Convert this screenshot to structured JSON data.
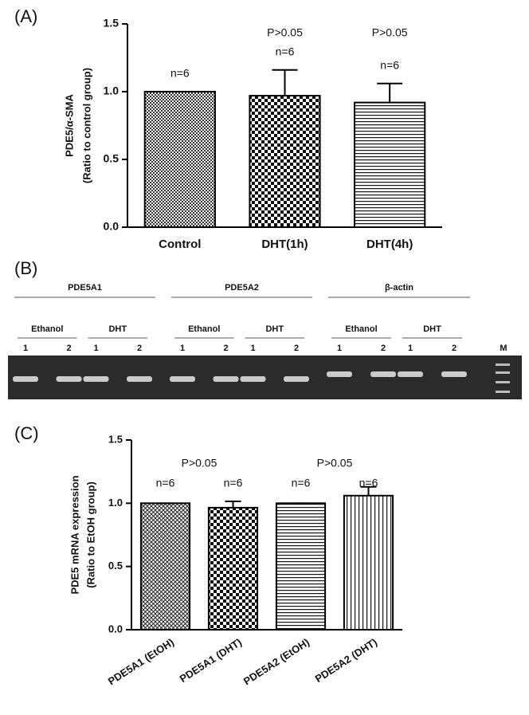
{
  "panel_labels": [
    "(A)",
    "(B)",
    "(C)"
  ],
  "chart_data": [
    {
      "type": "bar",
      "ylabel": [
        "PDE5/α-SMA",
        "(Ratio to control group)"
      ],
      "categories": [
        "Control",
        "DHT(1h)",
        "DHT(4h)"
      ],
      "values": [
        1.0,
        0.97,
        0.92
      ],
      "errors": [
        0,
        0.19,
        0.14
      ],
      "n_labels": [
        "n=6",
        "n=6",
        "n=6"
      ],
      "p_labels": [
        null,
        "P>0.05",
        "P>0.05"
      ],
      "patterns": [
        "p-fine",
        "p-check",
        "p-hline"
      ],
      "ylim": [
        0,
        1.5
      ],
      "yticks": [
        {
          "value": 0,
          "label": "0.0"
        },
        {
          "value": 0.5,
          "label": "0.5"
        },
        {
          "value": 1,
          "label": "1.0"
        },
        {
          "value": 1.5,
          "label": "1.5"
        }
      ]
    },
    {
      "type": "bar",
      "ylabel": [
        "PDE5 mRNA expression",
        "(Ratio to EtOH group)"
      ],
      "categories": [
        "PDE5A1 (EtOH)",
        "PDE5A1 (DHT)",
        "PDE5A2 (EtOH)",
        "PDE5A2 (DHT)"
      ],
      "values": [
        1.0,
        0.965,
        1.0,
        1.06
      ],
      "errors": [
        0,
        0.05,
        0,
        0.07
      ],
      "n_labels": [
        "n=6",
        "n=6",
        "n=6",
        "n=6"
      ],
      "p_labels": [
        null,
        "P>0.05",
        null,
        "P>0.05"
      ],
      "patterns": [
        "p-diag",
        "p-check",
        "p-hline",
        "p-vline"
      ],
      "ylim": [
        0,
        1.5
      ],
      "yticks": [
        {
          "value": 0,
          "label": "0.0"
        },
        {
          "value": 0.5,
          "label": "0.5"
        },
        {
          "value": 1,
          "label": "1.0"
        },
        {
          "value": 1.5,
          "label": "1.5"
        }
      ]
    }
  ],
  "gel": {
    "groups": [
      {
        "name": "PDE5A1",
        "conditions": [
          {
            "name": "Ethanol",
            "lanes": [
              "1",
              "2"
            ]
          },
          {
            "name": "DHT",
            "lanes": [
              "1",
              "2"
            ]
          }
        ]
      },
      {
        "name": "PDE5A2",
        "conditions": [
          {
            "name": "Ethanol",
            "lanes": [
              "1",
              "2"
            ]
          },
          {
            "name": "DHT",
            "lanes": [
              "1",
              "2"
            ]
          }
        ]
      },
      {
        "name": "β-actin",
        "conditions": [
          {
            "name": "Ethanol",
            "lanes": [
              "1",
              "2"
            ]
          },
          {
            "name": "DHT",
            "lanes": [
              "1",
              "2"
            ]
          }
        ]
      }
    ],
    "marker": "M"
  }
}
